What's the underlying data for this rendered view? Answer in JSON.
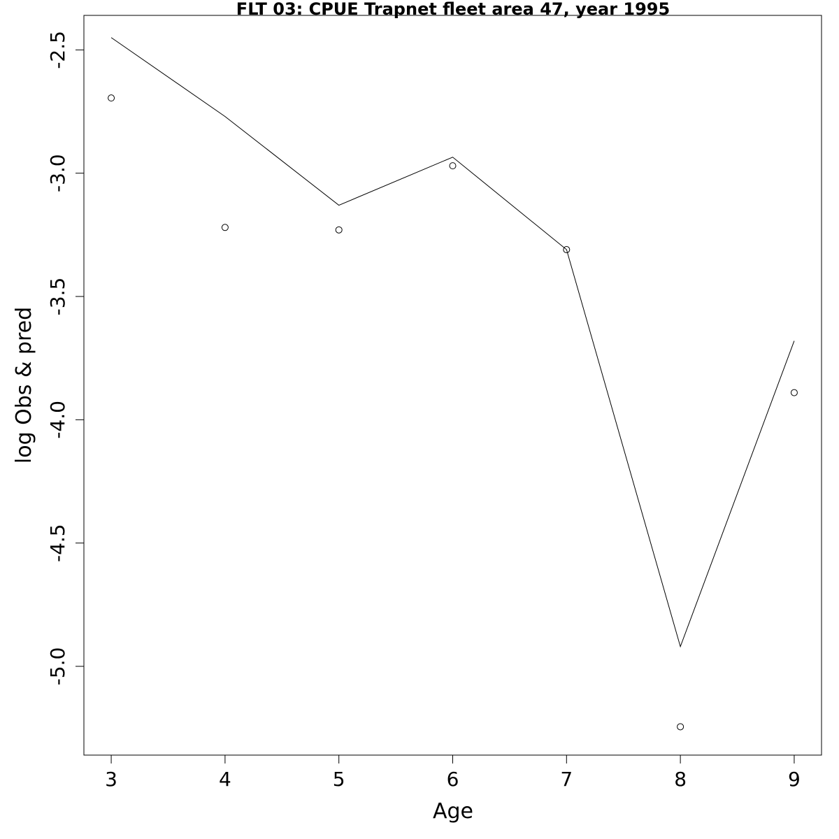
{
  "chart_data": {
    "type": "line",
    "title": "FLT 03: CPUE Trapnet fleet area 47, year 1995",
    "xlabel": "Age",
    "ylabel": "log Obs & pred",
    "x": [
      3,
      4,
      5,
      6,
      7,
      8,
      9
    ],
    "xlim": [
      2.76,
      9.24
    ],
    "ylim": [
      -5.36,
      -2.36
    ],
    "x_ticks": [
      "3",
      "4",
      "5",
      "6",
      "7",
      "8",
      "9"
    ],
    "y_ticks": [
      "-2.5",
      "-3.0",
      "-3.5",
      "-4.0",
      "-4.5",
      "-5.0"
    ],
    "grid": false,
    "series": [
      {
        "role": "predicted",
        "style": "line",
        "values": [
          -2.45,
          -2.77,
          -3.13,
          -2.935,
          -3.31,
          -4.92,
          -3.68
        ]
      },
      {
        "role": "observed",
        "style": "points",
        "values": [
          -2.695,
          -3.22,
          -3.23,
          -2.97,
          -3.31,
          -5.245,
          -3.89
        ]
      }
    ]
  }
}
